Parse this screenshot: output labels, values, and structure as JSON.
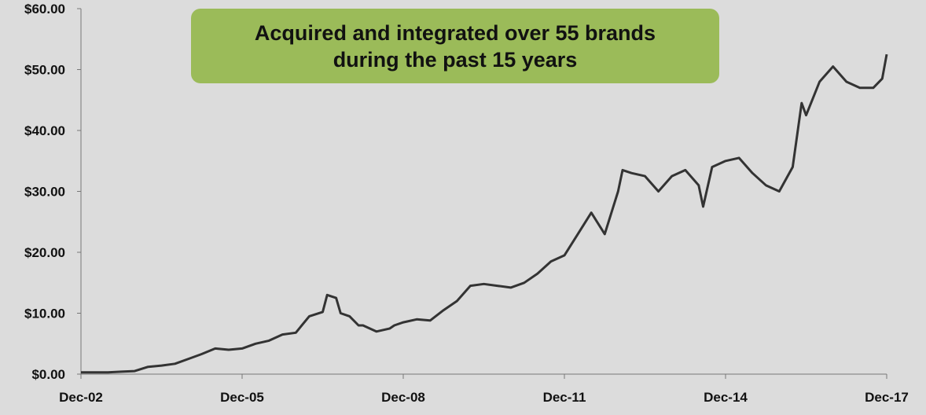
{
  "annotation": {
    "line1": "Acquired and integrated over 55 brands",
    "line2": "during the past 15 years",
    "color": "#9bbb59"
  },
  "chart_data": {
    "type": "line",
    "title": "",
    "xlabel": "",
    "ylabel": "",
    "x_ticks": [
      "Dec-02",
      "Dec-05",
      "Dec-08",
      "Dec-11",
      "Dec-14",
      "Dec-17"
    ],
    "y_ticks": [
      "$0.00",
      "$10.00",
      "$20.00",
      "$30.00",
      "$40.00",
      "$50.00",
      "$60.00"
    ],
    "ylim": [
      0,
      60
    ],
    "xlim": [
      "2002-12",
      "2017-12"
    ],
    "grid": false,
    "line_color": "#333333",
    "series": [
      {
        "name": "",
        "x": [
          "2002-12",
          "2003-03",
          "2003-06",
          "2003-09",
          "2003-12",
          "2004-03",
          "2004-06",
          "2004-09",
          "2004-12",
          "2005-03",
          "2005-06",
          "2005-09",
          "2005-12",
          "2006-03",
          "2006-06",
          "2006-09",
          "2006-12",
          "2007-03",
          "2007-06",
          "2007-07",
          "2007-09",
          "2007-10",
          "2007-12",
          "2008-02",
          "2008-03",
          "2008-06",
          "2008-09",
          "2008-10",
          "2008-12",
          "2009-03",
          "2009-06",
          "2009-09",
          "2009-12",
          "2010-03",
          "2010-06",
          "2010-09",
          "2010-12",
          "2011-03",
          "2011-06",
          "2011-09",
          "2011-12",
          "2012-03",
          "2012-06",
          "2012-09",
          "2012-12",
          "2013-01",
          "2013-03",
          "2013-06",
          "2013-09",
          "2013-12",
          "2014-03",
          "2014-06",
          "2014-07",
          "2014-09",
          "2014-12",
          "2015-03",
          "2015-06",
          "2015-09",
          "2015-12",
          "2016-03",
          "2016-05",
          "2016-06",
          "2016-09",
          "2016-12",
          "2017-03",
          "2017-06",
          "2017-09",
          "2017-11",
          "2017-12"
        ],
        "y": [
          0.3,
          0.3,
          0.3,
          0.4,
          0.5,
          1.2,
          1.4,
          1.7,
          2.5,
          3.3,
          4.2,
          4.0,
          4.2,
          5.0,
          5.5,
          6.5,
          6.8,
          9.5,
          10.2,
          13.0,
          12.5,
          10.0,
          9.5,
          8.0,
          8.0,
          7.0,
          7.5,
          8.0,
          8.5,
          9.0,
          8.8,
          10.5,
          12.0,
          14.5,
          14.8,
          14.5,
          14.2,
          15.0,
          16.5,
          18.5,
          19.5,
          23.0,
          26.5,
          23.0,
          30.0,
          33.5,
          33.0,
          32.5,
          30.0,
          32.5,
          33.5,
          31.0,
          27.5,
          34.0,
          35.0,
          35.5,
          33.0,
          31.0,
          30.0,
          34.0,
          44.5,
          42.5,
          48.0,
          50.5,
          48.0,
          47.0,
          47.0,
          48.5,
          52.5
        ]
      }
    ]
  }
}
